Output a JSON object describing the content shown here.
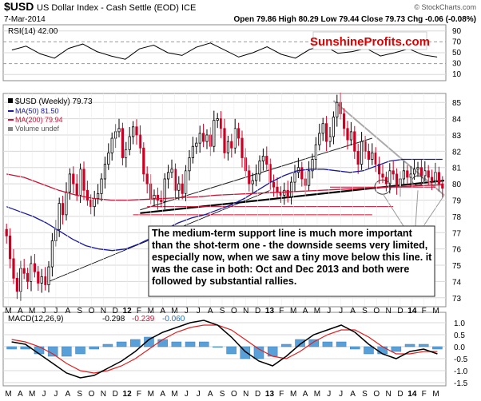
{
  "header": {
    "symbol": "$USD",
    "name": "US Dollar Index - Cash Settle (EOD) ICE",
    "date": "7-Mar-2014",
    "ohlc": "Open 79.86  High 80.29  Low 79.44  Close 79.73  Chg -0.06 (-0.08%)",
    "watermark": "© StockCharts.com",
    "brand": "SunshineProfits.com"
  },
  "colors": {
    "up": "#000000",
    "down": "#cc0022",
    "ma50": "#1a1a9e",
    "ma200": "#cc1133",
    "grid": "#d8d8d8",
    "brand": "#dd0000"
  },
  "chart_data": [
    {
      "type": "line",
      "title": "RSI(14) 42.00",
      "ylim": [
        0,
        100
      ],
      "y_ticks": [
        90,
        70,
        50,
        30,
        10
      ],
      "series": [
        {
          "name": "RSI(14)",
          "values": [
            55,
            62,
            48,
            40,
            58,
            66,
            52,
            44,
            38,
            57,
            64,
            50,
            45,
            60,
            68,
            55,
            42,
            50,
            61,
            47,
            40,
            56,
            63,
            49,
            52,
            58,
            44,
            50,
            57,
            46,
            42
          ]
        }
      ]
    },
    {
      "type": "candlestick",
      "title": "$USD (Weekly) 79.73",
      "ylim": [
        72.5,
        85.5
      ],
      "y_ticks": [
        85,
        84,
        83,
        82,
        81,
        80,
        79,
        78,
        77,
        76,
        75,
        74,
        73
      ],
      "x_tick_labels": [
        "M",
        "A",
        "M",
        "J",
        "J",
        "A",
        "S",
        "O",
        "N",
        "D",
        "12",
        "F",
        "M",
        "A",
        "M",
        "J",
        "J",
        "A",
        "S",
        "O",
        "N",
        "D",
        "13",
        "F",
        "M",
        "A",
        "M",
        "J",
        "J",
        "A",
        "S",
        "O",
        "N",
        "D",
        "14",
        "F",
        "M"
      ],
      "close": [
        76.8,
        75.4,
        74.2,
        73.4,
        74.8,
        74.5,
        74.0,
        75.1,
        74.6,
        73.9,
        74.3,
        73.8,
        74.9,
        76.5,
        77.2,
        78.8,
        78.1,
        79.5,
        80.6,
        80.0,
        79.3,
        80.9,
        79.6,
        79.0,
        78.6,
        79.1,
        79.4,
        80.3,
        81.2,
        81.9,
        82.8,
        83.2,
        83.4,
        81.6,
        82.1,
        82.9,
        83.5,
        83.0,
        82.2,
        80.6,
        80.0,
        79.1,
        79.3,
        79.0,
        78.9,
        80.3,
        80.7,
        80.9,
        79.6,
        80.0,
        79.4,
        80.8,
        81.6,
        82.3,
        82.5,
        83.1,
        82.6,
        83.0,
        82.3,
        83.9,
        84.0,
        83.4,
        81.9,
        82.6,
        82.2,
        83.4,
        82.8,
        81.6,
        80.8,
        80.0,
        80.2,
        80.6,
        81.4,
        81.7,
        81.2,
        80.1,
        79.8,
        79.5,
        79.3,
        79.6,
        79.2,
        80.1,
        80.7,
        81.0,
        80.3,
        79.9,
        80.8,
        81.5,
        82.4,
        83.1,
        83.7,
        82.6,
        82.9,
        84.1,
        85.0,
        84.3,
        83.4,
        82.7,
        83.2,
        82.0,
        81.2,
        82.6,
        82.0,
        81.5,
        81.9,
        81.2,
        80.6,
        80.4,
        80.0,
        80.8,
        80.6,
        79.8,
        80.3,
        80.8,
        80.4,
        80.6,
        80.9,
        81.0,
        80.5,
        80.8,
        80.4,
        80.2,
        80.7,
        80.0,
        79.73
      ],
      "ma50": [
        78.6,
        78.3,
        78.0,
        77.6,
        77.1,
        76.6,
        76.2,
        76.0,
        75.9,
        76.0,
        76.3,
        76.7,
        77.2,
        77.6,
        77.9,
        78.1,
        78.4,
        78.7,
        79.1,
        79.6,
        80.1,
        80.5,
        80.8,
        80.9,
        80.9,
        80.8,
        80.7,
        80.8,
        81.1,
        81.4,
        81.5,
        81.5,
        81.5,
        81.5
      ],
      "ma200": [
        80.6,
        80.4,
        80.0,
        79.6,
        79.3,
        79.1,
        79.0,
        79.0,
        79.05,
        79.1,
        79.15,
        79.2,
        79.3,
        79.35,
        79.4,
        79.45,
        79.5,
        79.55,
        79.6,
        79.65,
        79.7,
        79.75,
        79.8,
        79.85,
        79.9,
        79.94
      ],
      "legend": [
        "$USD (Weekly) 79.73",
        "MA(50) 81.50",
        "MA(200) 79.94",
        "Volume undef"
      ],
      "annotation": "The medium-term support line is much more important than the shot-term one - the downside seems very limited, especially now, when we saw a tiny move below this line. it was the case in both: Oct and Dec 2013 and both were followed by substantial rallies."
    },
    {
      "type": "line",
      "title": "MACD(12,26,9) -0.298, -0.239, -0.060",
      "legend": [
        "MACD(12,26,9)",
        "-0.298",
        "-0.239",
        "-0.060"
      ],
      "ylim": [
        -1.6,
        1.4
      ],
      "y_ticks": [
        "1.0",
        "0.5",
        "0.0",
        "-0.5",
        "-1.0",
        "-1.5"
      ],
      "series": [
        {
          "name": "MACD",
          "values": [
            0.2,
            0.1,
            -0.3,
            -0.7,
            -1.1,
            -1.3,
            -1.2,
            -0.9,
            -0.6,
            -0.2,
            0.3,
            0.6,
            0.8,
            1.0,
            1.1,
            0.9,
            0.4,
            -0.2,
            -0.6,
            -0.8,
            -0.4,
            0.1,
            0.5,
            0.7,
            0.9,
            0.6,
            0.1,
            -0.3,
            -0.5,
            -0.2,
            -0.1,
            -0.3
          ]
        },
        {
          "name": "Signal",
          "values": [
            0.3,
            0.2,
            0.0,
            -0.3,
            -0.7,
            -1.0,
            -1.1,
            -1.0,
            -0.8,
            -0.5,
            -0.1,
            0.3,
            0.6,
            0.8,
            0.9,
            0.9,
            0.7,
            0.3,
            -0.1,
            -0.4,
            -0.5,
            -0.2,
            0.2,
            0.5,
            0.7,
            0.7,
            0.4,
            0.0,
            -0.3,
            -0.3,
            -0.2,
            -0.2
          ]
        },
        {
          "name": "Histogram",
          "values": [
            -0.1,
            -0.1,
            -0.3,
            -0.4,
            -0.4,
            -0.3,
            -0.1,
            0.1,
            0.2,
            0.3,
            0.4,
            0.3,
            0.2,
            0.2,
            0.2,
            0.0,
            -0.3,
            -0.5,
            -0.5,
            -0.4,
            0.1,
            0.3,
            0.3,
            0.2,
            0.2,
            -0.1,
            -0.3,
            -0.3,
            -0.2,
            0.1,
            0.1,
            -0.1
          ]
        }
      ]
    }
  ],
  "x_axis_labels": [
    "M",
    "A",
    "M",
    "J",
    "J",
    "A",
    "S",
    "O",
    "N",
    "D",
    "12",
    "F",
    "M",
    "A",
    "M",
    "J",
    "J",
    "A",
    "S",
    "O",
    "N",
    "D",
    "13",
    "F",
    "M",
    "A",
    "M",
    "J",
    "J",
    "A",
    "S",
    "O",
    "N",
    "D",
    "14",
    "F",
    "M"
  ]
}
